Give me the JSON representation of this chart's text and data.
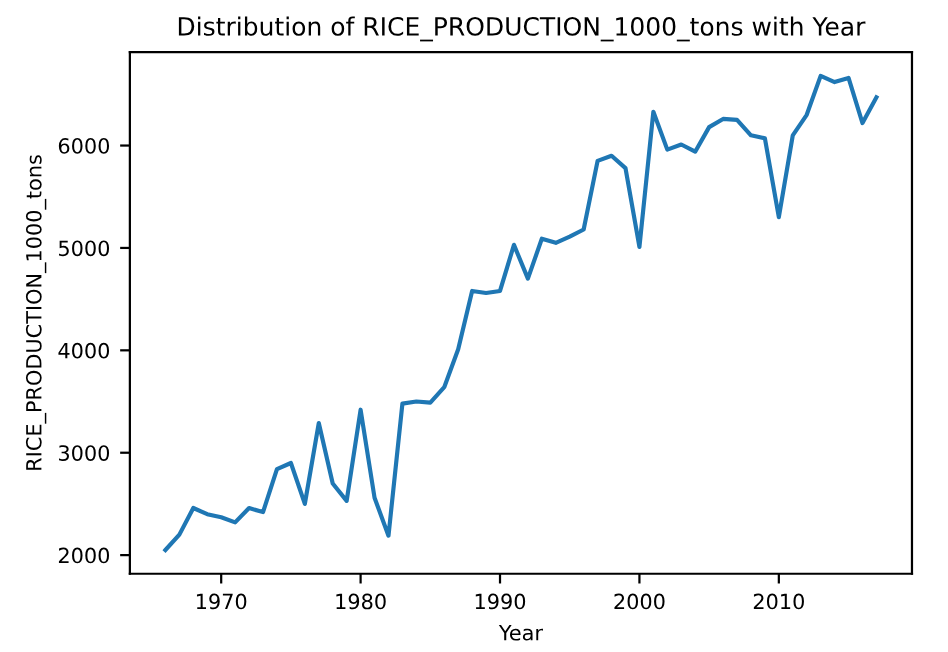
{
  "chart_data": {
    "type": "line",
    "title": "Distribution of RICE_PRODUCTION_1000_tons with Year",
    "xlabel": "Year",
    "ylabel": "RICE_PRODUCTION_1000_tons",
    "x": [
      1966,
      1967,
      1968,
      1969,
      1970,
      1971,
      1972,
      1973,
      1974,
      1975,
      1976,
      1977,
      1978,
      1979,
      1980,
      1981,
      1982,
      1983,
      1984,
      1985,
      1986,
      1987,
      1988,
      1989,
      1990,
      1991,
      1992,
      1993,
      1994,
      1995,
      1996,
      1997,
      1998,
      1999,
      2000,
      2001,
      2002,
      2003,
      2004,
      2005,
      2006,
      2007,
      2008,
      2009,
      2010,
      2011,
      2012,
      2013,
      2014,
      2015,
      2016,
      2017
    ],
    "series": [
      {
        "color": "#1f77b4",
        "values": [
          2050,
          2200,
          2460,
          2400,
          2370,
          2320,
          2460,
          2420,
          2840,
          2900,
          2500,
          3290,
          2700,
          2530,
          3420,
          2560,
          2190,
          3480,
          3500,
          3490,
          3640,
          4010,
          4580,
          4560,
          4580,
          5030,
          4700,
          5090,
          5050,
          5110,
          5180,
          5850,
          5900,
          5780,
          5010,
          6330,
          5960,
          6010,
          5940,
          6180,
          6260,
          6250,
          6100,
          6070,
          5300,
          6100,
          6300,
          6680,
          6620,
          6660,
          6220,
          6470
        ]
      }
    ],
    "xlim": [
      1963.45,
      2019.55
    ],
    "xticks": [
      1970,
      1980,
      1990,
      2000,
      2010
    ],
    "ylim": [
      1818,
      6912
    ],
    "yticks": [
      2000,
      3000,
      4000,
      5000,
      6000
    ],
    "grid": false,
    "legend": false,
    "marker": "none",
    "line_style": "solid"
  }
}
